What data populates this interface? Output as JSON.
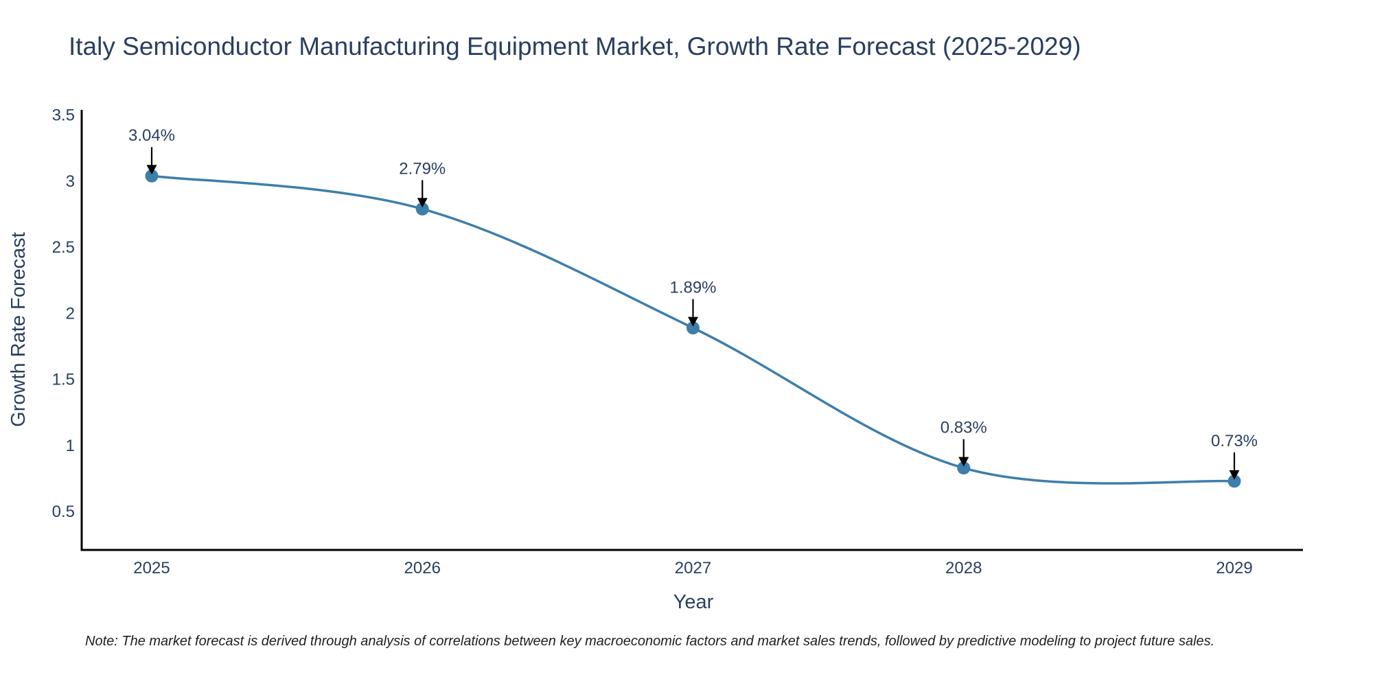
{
  "chart_data": {
    "type": "line",
    "title": "Italy Semiconductor Manufacturing Equipment Market, Growth Rate Forecast (2025-2029)",
    "xlabel": "Year",
    "ylabel": "Growth Rate Forecast",
    "categories": [
      "2025",
      "2026",
      "2027",
      "2028",
      "2029"
    ],
    "series": [
      {
        "name": "Growth Rate Forecast",
        "values": [
          3.04,
          2.79,
          1.89,
          0.83,
          0.73
        ],
        "data_labels": [
          "3.04%",
          "2.79%",
          "1.89%",
          "0.83%",
          "0.73%"
        ],
        "color": "#3d7eab"
      }
    ],
    "y_ticks": [
      0.5,
      1,
      1.5,
      2,
      2.5,
      3,
      3.5
    ],
    "y_tick_labels": [
      "0.5",
      "1",
      "1.5",
      "2",
      "2.5",
      "3",
      "3.5"
    ],
    "ylim": [
      0.21,
      3.54
    ],
    "grid": false,
    "legend": "none",
    "line_shape": "spline"
  },
  "note": "Note: The market forecast is derived through analysis of correlations between key macroeconomic factors and market sales trends, followed by predictive modeling to project future sales.",
  "colors": {
    "line": "#3d7eab",
    "marker": "#3d7eab",
    "axis": "#000000",
    "text": "#2a3f5f",
    "arrow": "#000000"
  }
}
